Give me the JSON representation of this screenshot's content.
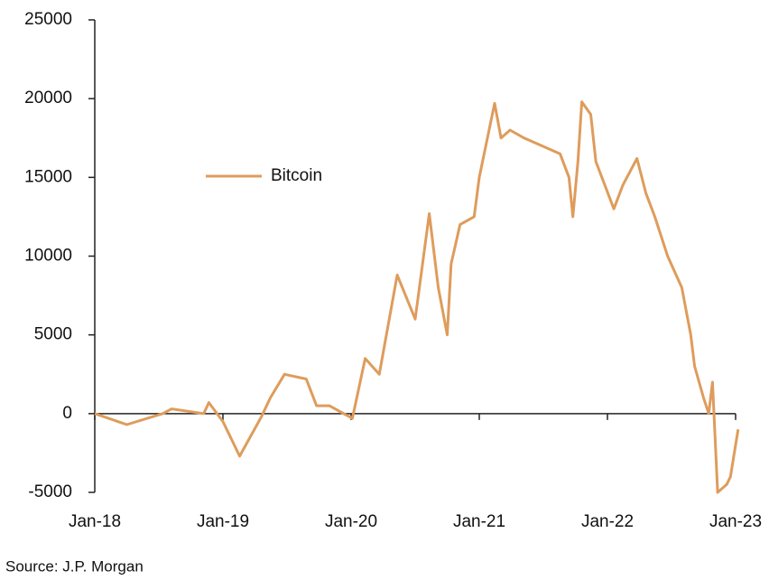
{
  "chart_data": {
    "type": "line",
    "source": "Source: J.P. Morgan",
    "x": [
      2018.0,
      2018.25,
      2018.53,
      2018.6,
      2018.85,
      2018.89,
      2019.0,
      2019.13,
      2019.3,
      2019.37,
      2019.48,
      2019.65,
      2019.73,
      2019.83,
      2020.01,
      2020.11,
      2020.22,
      2020.36,
      2020.5,
      2020.61,
      2020.68,
      2020.75,
      2020.78,
      2020.85,
      2020.96,
      2021.0,
      2021.12,
      2021.17,
      2021.24,
      2021.35,
      2021.49,
      2021.63,
      2021.7,
      2021.73,
      2021.77,
      2021.8,
      2021.87,
      2021.91,
      2022.05,
      2022.12,
      2022.23,
      2022.3,
      2022.37,
      2022.47,
      2022.58,
      2022.65,
      2022.68,
      2022.75,
      2022.79,
      2022.82,
      2022.86,
      2022.93,
      2022.96,
      2023.02
    ],
    "series": [
      {
        "name": "Bitcoin",
        "color": "#de9c5c",
        "values": [
          0,
          -700,
          0,
          300,
          0,
          700,
          -500,
          -2700,
          -200,
          1000,
          2500,
          2200,
          500,
          500,
          -300,
          3500,
          2500,
          8800,
          6000,
          12700,
          8000,
          5000,
          9500,
          12000,
          12500,
          15000,
          19700,
          17500,
          18000,
          17500,
          17000,
          16500,
          15000,
          12500,
          16000,
          19800,
          19000,
          16000,
          13000,
          14500,
          16200,
          14000,
          12500,
          10000,
          8000,
          5000,
          3000,
          1000,
          0,
          2000,
          -5000,
          -4500,
          -4000,
          -1000
        ]
      }
    ],
    "xlim": [
      2018,
      2023
    ],
    "xticks": [
      {
        "value": 2018,
        "label": "Jan-18"
      },
      {
        "value": 2019,
        "label": "Jan-19"
      },
      {
        "value": 2020,
        "label": "Jan-20"
      },
      {
        "value": 2021,
        "label": "Jan-21"
      },
      {
        "value": 2022,
        "label": "Jan-22"
      },
      {
        "value": 2023,
        "label": "Jan-23"
      }
    ],
    "ylim": [
      -5000,
      25000
    ],
    "yticks": [
      -5000,
      0,
      5000,
      10000,
      15000,
      20000,
      25000
    ],
    "legend": "upper left"
  }
}
